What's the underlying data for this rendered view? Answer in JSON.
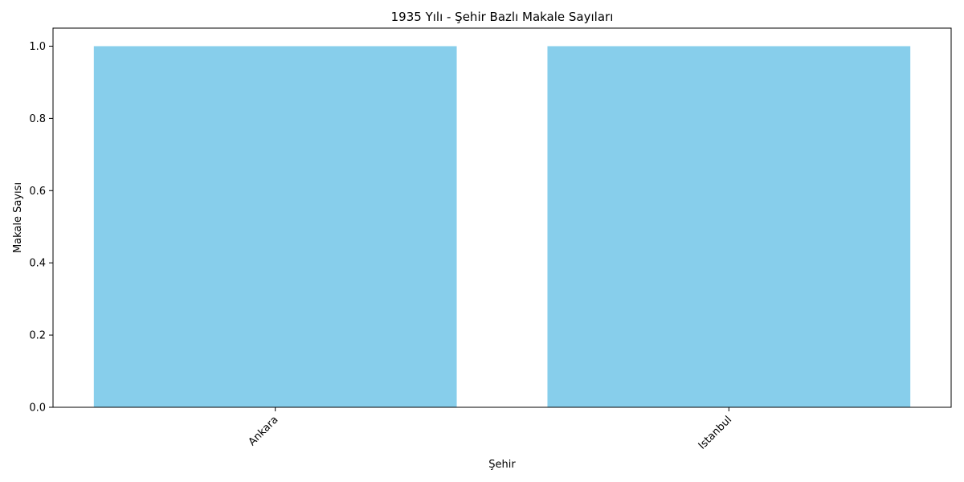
{
  "chart_data": {
    "type": "bar",
    "title": "1935 Yılı - Şehir Bazlı Makale Sayıları",
    "xlabel": "Şehir",
    "ylabel": "Makale Sayısı",
    "categories": [
      "Ankara",
      "Istanbul"
    ],
    "values": [
      1,
      1
    ],
    "ylim": [
      0,
      1.05
    ],
    "yticks": [
      0.0,
      0.2,
      0.4,
      0.6,
      0.8,
      1.0
    ],
    "ytick_labels": [
      "0.0",
      "0.2",
      "0.4",
      "0.6",
      "0.8",
      "1.0"
    ],
    "bar_color": "#87ceeb",
    "grid": false,
    "legend": "none"
  }
}
